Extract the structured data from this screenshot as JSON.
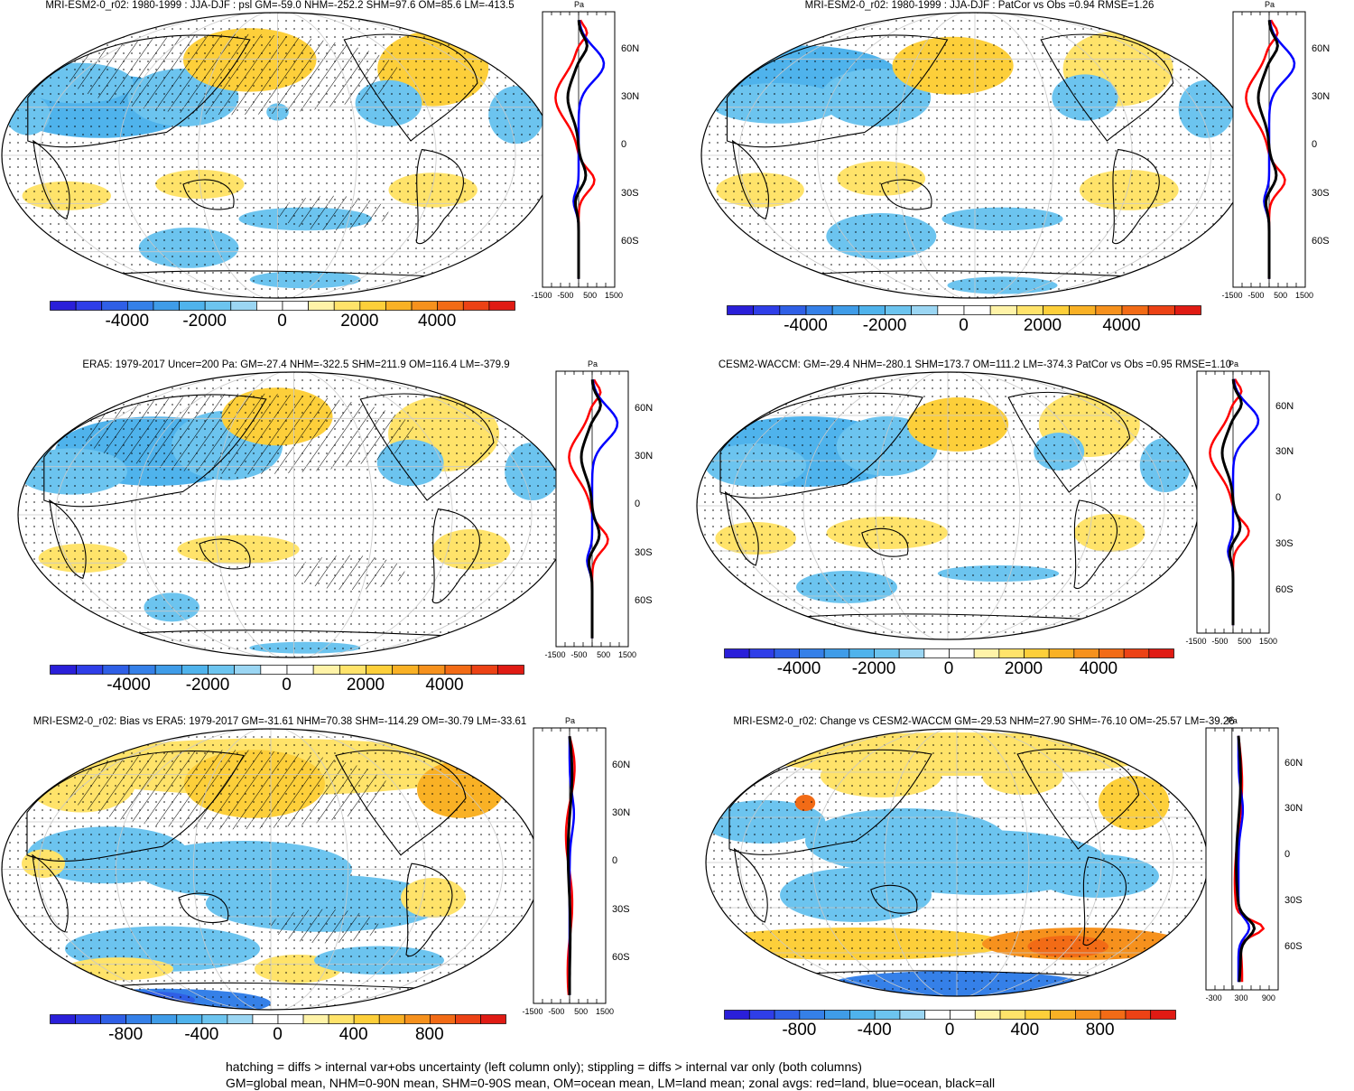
{
  "panels": [
    {
      "id": "p1",
      "title": "MRI-ESM2-0_r02: 1980-1999 : JJA-DJF : psl GM=-59.0 NHM=-252.2 SHM=97.6 OM=85.6 LM=-413.5",
      "colorbar_ticks": [
        "-4000",
        "-2000",
        "0",
        "2000",
        "4000"
      ],
      "zonal_unit": "Pa",
      "zonal_lat_ticks": [
        "60N",
        "30N",
        "0",
        "30S",
        "60S"
      ],
      "zonal_x_ticks": [
        "-1500",
        "-500",
        "500",
        "1500"
      ],
      "hatching": true
    },
    {
      "id": "p2",
      "title": "MRI-ESM2-0_r02: 1980-1999 : JJA-DJF : PatCor vs Obs =0.94 RMSE=1.26",
      "colorbar_ticks": [
        "-4000",
        "-2000",
        "0",
        "2000",
        "4000"
      ],
      "zonal_unit": "Pa",
      "zonal_lat_ticks": [
        "60N",
        "30N",
        "0",
        "30S",
        "60S"
      ],
      "zonal_x_ticks": [
        "-1500",
        "-500",
        "500",
        "1500"
      ],
      "hatching": false
    },
    {
      "id": "p3",
      "title": "ERA5: 1979-2017 Uncer=200 Pa: GM=-27.4 NHM=-322.5 SHM=211.9 OM=116.4 LM=-379.9",
      "colorbar_ticks": [
        "-4000",
        "-2000",
        "0",
        "2000",
        "4000"
      ],
      "zonal_unit": "Pa",
      "zonal_lat_ticks": [
        "60N",
        "30N",
        "0",
        "30S",
        "60S"
      ],
      "zonal_x_ticks": [
        "-1500",
        "-500",
        "500",
        "1500"
      ],
      "hatching": true
    },
    {
      "id": "p4",
      "title": "CESM2-WACCM: GM=-29.4 NHM=-280.1 SHM=173.7 OM=111.2 LM=-374.3 PatCor vs Obs =0.95 RMSE=1.10",
      "colorbar_ticks": [
        "-4000",
        "-2000",
        "0",
        "2000",
        "4000"
      ],
      "zonal_unit": "Pa",
      "zonal_lat_ticks": [
        "60N",
        "30N",
        "0",
        "30S",
        "60S"
      ],
      "zonal_x_ticks": [
        "-1500",
        "-500",
        "500",
        "1500"
      ],
      "hatching": false
    },
    {
      "id": "p5",
      "title": "MRI-ESM2-0_r02: Bias vs ERA5: 1979-2017 GM=-31.61 NHM=70.38 SHM=-114.29 OM=-30.79 LM=-33.61",
      "colorbar_ticks": [
        "-800",
        "-400",
        "0",
        "400",
        "800"
      ],
      "zonal_unit": "Pa",
      "zonal_lat_ticks": [
        "60N",
        "30N",
        "0",
        "30S",
        "60S"
      ],
      "zonal_x_ticks": [
        "-1500",
        "-500",
        "500",
        "1500"
      ],
      "hatching": true
    },
    {
      "id": "p6",
      "title": "MRI-ESM2-0_r02: Change vs CESM2-WACCM GM=-29.53 NHM=27.90 SHM=-76.10 OM=-25.57 LM=-39.26",
      "colorbar_ticks": [
        "-800",
        "-400",
        "0",
        "400",
        "800"
      ],
      "zonal_unit": "Pa",
      "zonal_lat_ticks": [
        "60N",
        "30N",
        "0",
        "30S",
        "60S"
      ],
      "zonal_x_ticks": [
        "-300",
        "300",
        "900"
      ],
      "hatching": false
    }
  ],
  "colors": {
    "palette": [
      "#2a1fd9",
      "#2f3ee8",
      "#2f5fe6",
      "#3580e8",
      "#3f9ce8",
      "#4fb3ec",
      "#6cc4ef",
      "#9bd6f3",
      "#ffffff",
      "#ffffff",
      "#fff3a8",
      "#ffe36a",
      "#fdcf3a",
      "#f9b125",
      "#f6911d",
      "#f26b16",
      "#ec4215",
      "#e01b14"
    ],
    "land_line": "red",
    "ocean_line": "blue",
    "all_line": "black"
  },
  "footer": {
    "line1": "hatching = diffs > internal var+obs uncertainty (left column only); stippling = diffs > internal var only (both columns)",
    "line2": "GM=global mean, NHM=0-90N mean, SHM=0-90S mean, OM=ocean mean, LM=land mean; zonal avgs: red=land, blue=ocean, black=all"
  }
}
